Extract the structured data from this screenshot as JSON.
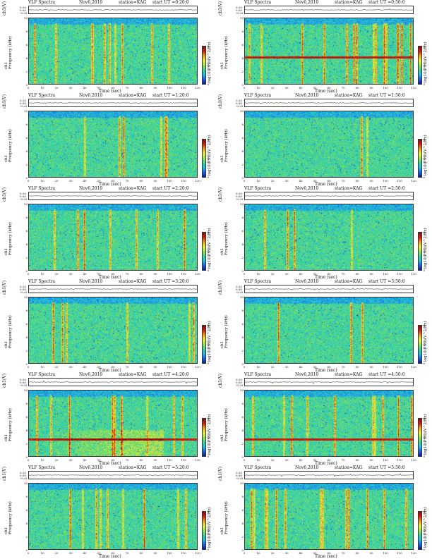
{
  "colors": {
    "colormap": [
      "#0a1a9a",
      "#1e5fe8",
      "#22c0e0",
      "#36d39a",
      "#9ee34a",
      "#eef03a",
      "#f0a020",
      "#d82010",
      "#8a0a0a"
    ],
    "frame": "#333333",
    "trace": "#222222"
  },
  "chart_data": [
    {
      "type": "heatmap",
      "title": "VLF Spectra",
      "date": "Nov6,2010",
      "station": "station=KAG",
      "start_ut": "start UT =0:20:0",
      "trace_label": "ch1(V)",
      "trace_ticks": [
        "0.20",
        "0.00",
        "-0.20"
      ],
      "ylabel_line1": "ch1",
      "ylabel_line2": "Frequency (kHz)",
      "xlabel": "Time (sec)",
      "xticks": [
        0,
        10,
        20,
        30,
        40,
        50,
        60,
        70,
        80,
        90,
        100,
        110,
        120
      ],
      "yticks": [
        0,
        2,
        4,
        6,
        8,
        10
      ],
      "xlim": [
        0,
        120
      ],
      "ylim": [
        0,
        10
      ],
      "colorbar_label": "log10(PSD)(V^2/Hz)",
      "colorbar_ticks": [
        "-2",
        "-4",
        "-5"
      ],
      "features": {
        "activity": 0.75,
        "line_khz": null
      }
    },
    {
      "type": "heatmap",
      "title": "VLF Spectra",
      "date": "Nov6,2010",
      "station": "station=KAG",
      "start_ut": "start UT =0:50:0",
      "trace_label": "ch1(V)",
      "trace_ticks": [
        "0.20",
        "0.00",
        "-0.20"
      ],
      "ylabel_line1": "ch1",
      "ylabel_line2": "Frequency (kHz)",
      "xlabel": "Time (sec)",
      "xticks": [
        0,
        10,
        20,
        30,
        40,
        50,
        60,
        70,
        80,
        90,
        100,
        110,
        120
      ],
      "yticks": [
        0,
        2,
        4,
        6,
        8,
        10
      ],
      "xlim": [
        0,
        120
      ],
      "ylim": [
        0,
        10
      ],
      "colorbar_label": "log10(PSD)(V^2/Hz)",
      "colorbar_ticks": [
        "-2",
        "-4",
        "-5"
      ],
      "features": {
        "activity": 0.75,
        "line_khz": 4.1
      }
    },
    {
      "type": "heatmap",
      "title": "VLF Spectra",
      "date": "Nov6,2010",
      "station": "station=KAG",
      "start_ut": "start UT =1:20:0",
      "trace_label": "ch1(V)",
      "trace_ticks": [
        "0.20",
        "0.00",
        "-0.20"
      ],
      "ylabel_line1": "ch1",
      "ylabel_line2": "Frequency (kHz)",
      "xlabel": "Time (sec)",
      "xticks": [
        0,
        10,
        20,
        30,
        40,
        50,
        60,
        70,
        80,
        90,
        100,
        110,
        120
      ],
      "yticks": [
        0,
        2,
        4,
        6,
        8,
        10
      ],
      "xlim": [
        0,
        120
      ],
      "ylim": [
        0,
        10
      ],
      "colorbar_label": "log10(PSD)(V^2/Hz)",
      "colorbar_ticks": [
        "-2",
        "-4",
        "-5"
      ],
      "features": {
        "activity": 0.5,
        "line_khz": null
      }
    },
    {
      "type": "heatmap",
      "title": "VLF Spectra",
      "date": "Nov6,2010",
      "station": "station=KAG",
      "start_ut": "start UT =1:50:0",
      "trace_label": "ch1(V)",
      "trace_ticks": [
        "0.20",
        "0.00",
        "-0.20"
      ],
      "ylabel_line1": "ch1",
      "ylabel_line2": "Frequency (kHz)",
      "xlabel": "Time (sec)",
      "xticks": [
        0,
        10,
        20,
        30,
        40,
        50,
        60,
        70,
        80,
        90,
        100,
        110,
        120
      ],
      "yticks": [
        0,
        2,
        4,
        6,
        8,
        10
      ],
      "xlim": [
        0,
        120
      ],
      "ylim": [
        0,
        10
      ],
      "colorbar_label": "log10(PSD)(V^2/Hz)",
      "colorbar_ticks": [
        "-2",
        "-4",
        "-5"
      ],
      "features": {
        "activity": 0.3,
        "line_khz": null
      }
    },
    {
      "type": "heatmap",
      "title": "VLF Spectra",
      "date": "Nov6,2010",
      "station": "station=KAG",
      "start_ut": "start UT =2:20:0",
      "trace_label": "ch1(V)",
      "trace_ticks": [
        "0.20",
        "0.00",
        "-0.20"
      ],
      "ylabel_line1": "ch1",
      "ylabel_line2": "Frequency (kHz)",
      "xlabel": "Time (sec)",
      "xticks": [
        0,
        10,
        20,
        30,
        40,
        50,
        60,
        70,
        80,
        90,
        100,
        110,
        120
      ],
      "yticks": [
        0,
        2,
        4,
        6,
        8,
        10
      ],
      "xlim": [
        0,
        120
      ],
      "ylim": [
        0,
        10
      ],
      "colorbar_label": "log10(PSD)(V^2/Hz)",
      "colorbar_ticks": [
        "-2",
        "-4",
        "-5"
      ],
      "features": {
        "activity": 0.55,
        "line_khz": null
      }
    },
    {
      "type": "heatmap",
      "title": "VLF Spectra",
      "date": "Nov6,2010",
      "station": "station=KAG",
      "start_ut": "start UT =2:50:0",
      "trace_label": "ch1(V)",
      "trace_ticks": [
        "0.20",
        "0.00",
        "-0.20"
      ],
      "ylabel_line1": "ch1",
      "ylabel_line2": "Frequency (kHz)",
      "xlabel": "Time (sec)",
      "xticks": [
        0,
        10,
        20,
        30,
        40,
        50,
        60,
        70,
        80,
        90,
        100,
        110,
        120
      ],
      "yticks": [
        0,
        2,
        4,
        6,
        8,
        10
      ],
      "xlim": [
        0,
        120
      ],
      "ylim": [
        0,
        10
      ],
      "colorbar_label": "log10(PSD)(V^2/Hz)",
      "colorbar_ticks": [
        "-2",
        "-4",
        "-5"
      ],
      "features": {
        "activity": 0.35,
        "line_khz": null
      }
    },
    {
      "type": "heatmap",
      "title": "VLF Spectra",
      "date": "Nov6,2010",
      "station": "station=KAG",
      "start_ut": "start UT =3:20:0",
      "trace_label": "ch1(V)",
      "trace_ticks": [
        "0.20",
        "0.00",
        "-0.20"
      ],
      "ylabel_line1": "ch1",
      "ylabel_line2": "Frequency (kHz)",
      "xlabel": "Time (sec)",
      "xticks": [
        0,
        10,
        20,
        30,
        40,
        50,
        60,
        70,
        80,
        90,
        100,
        110,
        120
      ],
      "yticks": [
        0,
        2,
        4,
        6,
        8,
        10
      ],
      "xlim": [
        0,
        120
      ],
      "ylim": [
        0,
        10
      ],
      "colorbar_label": "log10(PSD)(V^2/Hz)",
      "colorbar_ticks": [
        "-2",
        "-4",
        "-5"
      ],
      "features": {
        "activity": 0.4,
        "line_khz": null
      }
    },
    {
      "type": "heatmap",
      "title": "VLF Spectra",
      "date": "Nov6,2010",
      "station": "station=KAG",
      "start_ut": "start UT =3:50:0",
      "trace_label": "ch1(V)",
      "trace_ticks": [
        "0.20",
        "0.00",
        "-0.20"
      ],
      "ylabel_line1": "ch1",
      "ylabel_line2": "Frequency (kHz)",
      "xlabel": "Time (sec)",
      "xticks": [
        0,
        10,
        20,
        30,
        40,
        50,
        60,
        70,
        80,
        90,
        100,
        110,
        120
      ],
      "yticks": [
        0,
        2,
        4,
        6,
        8,
        10
      ],
      "xlim": [
        0,
        120
      ],
      "ylim": [
        0,
        10
      ],
      "colorbar_label": "log10(PSD)(V^2/Hz)",
      "colorbar_ticks": [
        "-2",
        "-4",
        "-5"
      ],
      "features": {
        "activity": 0.55,
        "line_khz": null
      }
    },
    {
      "type": "heatmap",
      "title": "VLF Spectra",
      "date": "Nov6,2010",
      "station": "station=KAG",
      "start_ut": "start UT =4:20:0",
      "trace_label": "ch1(V)",
      "trace_ticks": [
        "0.20",
        "0.00",
        "-0.20"
      ],
      "ylabel_line1": "ch1",
      "ylabel_line2": "Frequency (kHz)",
      "xlabel": "Time (sec)",
      "xticks": [
        0,
        10,
        20,
        30,
        40,
        50,
        60,
        70,
        80,
        90,
        100,
        110,
        120
      ],
      "yticks": [
        0,
        2,
        4,
        6,
        8,
        10
      ],
      "xlim": [
        0,
        120
      ],
      "ylim": [
        0,
        10
      ],
      "colorbar_label": "log10(PSD)(V^2/Hz)",
      "colorbar_ticks": [
        "-2",
        "-4",
        "-5"
      ],
      "features": {
        "activity": 0.95,
        "line_khz": 2.6
      }
    },
    {
      "type": "heatmap",
      "title": "VLF Spectra",
      "date": "Nov6,2010",
      "station": "station=KAG",
      "start_ut": "start UT =4:50:0",
      "trace_label": "ch1(V)",
      "trace_ticks": [
        "0.20",
        "0.00",
        "-0.20"
      ],
      "ylabel_line1": "ch1",
      "ylabel_line2": "Frequency (kHz)",
      "xlabel": "Time (sec)",
      "xticks": [
        0,
        10,
        20,
        30,
        40,
        50,
        60,
        70,
        80,
        90,
        100,
        110,
        120
      ],
      "yticks": [
        0,
        2,
        4,
        6,
        8,
        10
      ],
      "xlim": [
        0,
        120
      ],
      "ylim": [
        0,
        10
      ],
      "colorbar_label": "log10(PSD)(V^2/Hz)",
      "colorbar_ticks": [
        "-2",
        "-4",
        "-5"
      ],
      "features": {
        "activity": 0.8,
        "line_khz": 2.6
      }
    },
    {
      "type": "heatmap",
      "title": "VLF Spectra",
      "date": "Nov6,2010",
      "station": "station=KAG",
      "start_ut": "start UT =5:20:0",
      "trace_label": "ch1(V)",
      "trace_ticks": [
        "0.20",
        "0.00",
        "-0.20"
      ],
      "ylabel_line1": "ch1",
      "ylabel_line2": "Frequency (kHz)",
      "xlabel": "Time (sec)",
      "xticks": [
        0,
        10,
        20,
        30,
        40,
        50,
        60,
        70,
        80,
        90,
        100,
        110,
        120
      ],
      "yticks": [
        0,
        2,
        4,
        6,
        8,
        10
      ],
      "xlim": [
        0,
        120
      ],
      "ylim": [
        0,
        10
      ],
      "colorbar_label": "log10(PSD)(V^2/Hz)",
      "colorbar_ticks": [
        "-2",
        "-4",
        "-5"
      ],
      "features": {
        "activity": 0.7,
        "line_khz": null
      }
    },
    {
      "type": "heatmap",
      "title": "VLF Spectra",
      "date": "Nov6,2010",
      "station": "station=KAG",
      "start_ut": "start UT =5:50:0",
      "trace_label": "ch1(V)",
      "trace_ticks": [
        "0.20",
        "0.00",
        "-0.20"
      ],
      "ylabel_line1": "ch1",
      "ylabel_line2": "Frequency (kHz)",
      "xlabel": "Time (sec)",
      "xticks": [
        0,
        10,
        20,
        30,
        40,
        50,
        60,
        70,
        80,
        90,
        100,
        110,
        120
      ],
      "yticks": [
        0,
        2,
        4,
        6,
        8,
        10
      ],
      "xlim": [
        0,
        120
      ],
      "ylim": [
        0,
        10
      ],
      "colorbar_label": "log10(PSD)(V^2/Hz)",
      "colorbar_ticks": [
        "-2",
        "-4",
        "-5"
      ],
      "features": {
        "activity": 0.8,
        "line_khz": null
      }
    }
  ]
}
